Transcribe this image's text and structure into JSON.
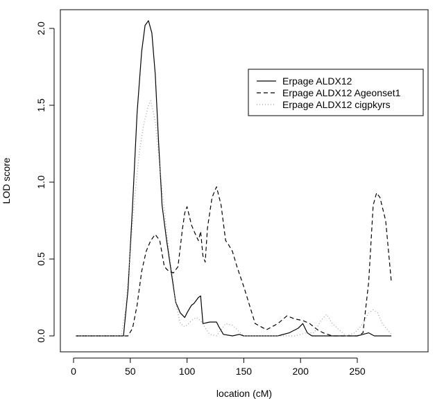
{
  "chart_data": {
    "type": "line",
    "xlabel": "location (cM)",
    "ylabel": "LOD score",
    "xlim": [
      0,
      280
    ],
    "ylim": [
      -0.05,
      2.2
    ],
    "xticks": [
      0,
      50,
      100,
      150,
      200,
      250
    ],
    "yticks": [
      0.0,
      0.5,
      1.0,
      1.5,
      2.0
    ],
    "xtick_labels": [
      "0",
      "50",
      "100",
      "150",
      "200",
      "250"
    ],
    "ytick_labels": [
      "0.0",
      "0.5",
      "1.0",
      "1.5",
      "2.0"
    ],
    "grid": false,
    "legend_position": "top-right",
    "series": [
      {
        "name": "Erpage ALDX12",
        "style": "solid",
        "color": "#000000",
        "x": [
          2,
          44,
          48,
          52,
          56,
          60,
          63,
          66,
          69,
          72,
          75,
          78,
          82,
          86,
          90,
          94,
          98,
          100,
          104,
          106,
          110,
          112,
          114,
          120,
          126,
          128,
          132,
          140,
          146,
          150,
          160,
          180,
          190,
          198,
          202,
          206,
          210,
          250,
          255,
          260,
          265,
          280
        ],
        "y": [
          0.0,
          0.0,
          0.3,
          0.85,
          1.45,
          1.85,
          2.02,
          2.05,
          1.97,
          1.7,
          1.25,
          0.85,
          0.62,
          0.42,
          0.22,
          0.15,
          0.12,
          0.15,
          0.2,
          0.21,
          0.25,
          0.26,
          0.08,
          0.09,
          0.09,
          0.06,
          0.01,
          0.0,
          0.01,
          0.0,
          0.0,
          0.0,
          0.02,
          0.05,
          0.08,
          0.02,
          0.0,
          0.0,
          0.01,
          0.02,
          0.0,
          0.0
        ]
      },
      {
        "name": "Erpage ALDX12 Ageonset1",
        "style": "dashed",
        "color": "#000000",
        "x": [
          2,
          48,
          52,
          56,
          60,
          64,
          68,
          72,
          76,
          80,
          84,
          88,
          92,
          96,
          98,
          100,
          104,
          108,
          110,
          112,
          114,
          116,
          118,
          122,
          126,
          130,
          134,
          136,
          140,
          144,
          150,
          160,
          170,
          180,
          188,
          195,
          202,
          208,
          215,
          220,
          228,
          240,
          250,
          255,
          260,
          264,
          267,
          270,
          275,
          280
        ],
        "y": [
          0.0,
          0.0,
          0.05,
          0.2,
          0.42,
          0.55,
          0.62,
          0.66,
          0.62,
          0.45,
          0.42,
          0.41,
          0.45,
          0.7,
          0.8,
          0.84,
          0.72,
          0.65,
          0.62,
          0.68,
          0.52,
          0.48,
          0.7,
          0.9,
          0.97,
          0.85,
          0.62,
          0.6,
          0.55,
          0.45,
          0.32,
          0.08,
          0.04,
          0.08,
          0.13,
          0.11,
          0.1,
          0.08,
          0.04,
          0.02,
          0.0,
          0.0,
          0.0,
          0.02,
          0.35,
          0.85,
          0.93,
          0.9,
          0.75,
          0.35
        ]
      },
      {
        "name": "Erpage ALDX12 cigpkyrs",
        "style": "dotted",
        "color": "#999999",
        "x": [
          2,
          42,
          46,
          50,
          54,
          58,
          62,
          66,
          68,
          72,
          76,
          80,
          84,
          88,
          90,
          94,
          98,
          100,
          104,
          108,
          112,
          116,
          120,
          126,
          130,
          134,
          140,
          150,
          160,
          180,
          195,
          205,
          212,
          218,
          223,
          228,
          240,
          248,
          255,
          260,
          264,
          268,
          272,
          280
        ],
        "y": [
          0.0,
          0.0,
          0.18,
          0.55,
          0.9,
          1.2,
          1.38,
          1.5,
          1.53,
          1.4,
          1.1,
          0.82,
          0.55,
          0.35,
          0.22,
          0.08,
          0.06,
          0.07,
          0.1,
          0.12,
          0.1,
          0.05,
          0.01,
          0.0,
          0.04,
          0.08,
          0.07,
          0.0,
          0.0,
          0.0,
          0.0,
          0.02,
          0.02,
          0.1,
          0.14,
          0.08,
          0.0,
          0.02,
          0.08,
          0.15,
          0.17,
          0.15,
          0.08,
          0.01
        ]
      }
    ]
  }
}
